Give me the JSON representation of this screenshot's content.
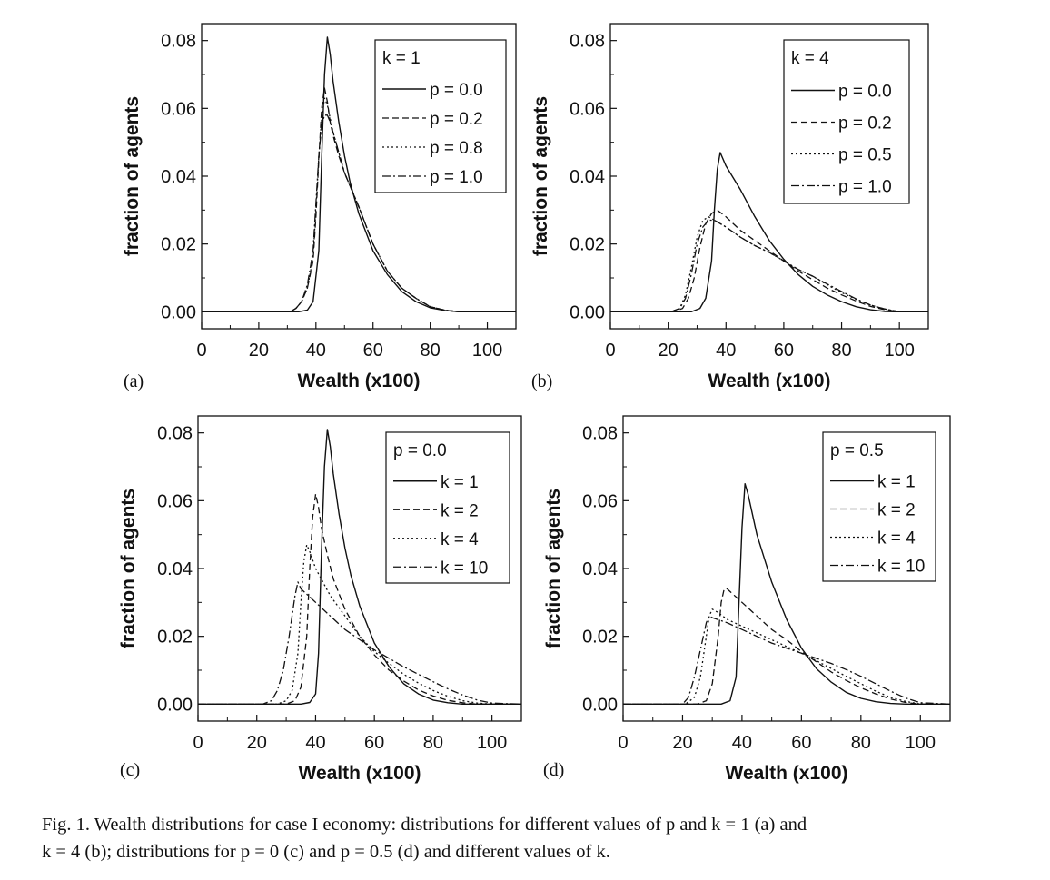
{
  "caption": {
    "line1": "Fig. 1. Wealth distributions for case I economy: distributions for different values of p and k = 1 (a) and",
    "line2": "k = 4 (b); distributions for p = 0 (c) and p = 0.5 (d) and different values of k."
  },
  "chart_data": [
    {
      "panel": "(a)",
      "type": "line",
      "xlabel": "Wealth (x100)",
      "ylabel": "fraction of agents",
      "xlim": [
        0,
        110
      ],
      "ylim": [
        -0.005,
        0.085
      ],
      "xticks": [
        "0",
        "20",
        "40",
        "60",
        "80",
        "100"
      ],
      "yticks": [
        "0.00",
        "0.02",
        "0.04",
        "0.06",
        "0.08"
      ],
      "legend_title": "k = 1",
      "legend_position": "top-right",
      "series": [
        {
          "name": "p = 0.0",
          "dash": "solid",
          "x": [
            0,
            34,
            37,
            39,
            41,
            42,
            43,
            44,
            45,
            46,
            48,
            50,
            52,
            55,
            60,
            65,
            70,
            75,
            80,
            85,
            90,
            110
          ],
          "y": [
            0,
            0,
            0.0005,
            0.003,
            0.018,
            0.045,
            0.07,
            0.081,
            0.076,
            0.068,
            0.056,
            0.046,
            0.038,
            0.029,
            0.018,
            0.011,
            0.006,
            0.003,
            0.0012,
            0.0004,
            0,
            0
          ]
        },
        {
          "name": "p = 0.2",
          "dash": "dashed",
          "x": [
            0,
            31,
            33,
            35,
            37,
            39,
            40,
            41,
            42,
            43,
            44,
            45,
            46,
            48,
            50,
            55,
            60,
            65,
            70,
            75,
            80,
            85,
            90,
            110
          ],
          "y": [
            0,
            0,
            0.001,
            0.003,
            0.007,
            0.015,
            0.028,
            0.045,
            0.06,
            0.066,
            0.062,
            0.056,
            0.052,
            0.046,
            0.041,
            0.031,
            0.02,
            0.012,
            0.007,
            0.004,
            0.0015,
            0.0005,
            0,
            0
          ]
        },
        {
          "name": "p = 0.8",
          "dash": "dotted",
          "x": [
            0,
            31,
            33,
            35,
            37,
            39,
            40,
            41,
            42,
            43,
            44,
            45,
            46,
            48,
            50,
            55,
            60,
            65,
            70,
            75,
            80,
            85,
            90,
            110
          ],
          "y": [
            0,
            0,
            0.001,
            0.003,
            0.007,
            0.016,
            0.03,
            0.046,
            0.057,
            0.063,
            0.061,
            0.057,
            0.053,
            0.047,
            0.041,
            0.031,
            0.02,
            0.012,
            0.007,
            0.004,
            0.0015,
            0.0005,
            0,
            0
          ]
        },
        {
          "name": "p = 1.0",
          "dash": "dashdot",
          "x": [
            0,
            31,
            33,
            35,
            37,
            39,
            40,
            41,
            42,
            43,
            44,
            45,
            46,
            48,
            50,
            55,
            60,
            65,
            70,
            75,
            80,
            85,
            90,
            110
          ],
          "y": [
            0,
            0,
            0.001,
            0.003,
            0.008,
            0.018,
            0.032,
            0.046,
            0.055,
            0.058,
            0.058,
            0.056,
            0.053,
            0.047,
            0.041,
            0.031,
            0.02,
            0.012,
            0.007,
            0.004,
            0.0015,
            0.0005,
            0,
            0
          ]
        }
      ]
    },
    {
      "panel": "(b)",
      "type": "line",
      "xlabel": "Wealth (x100)",
      "ylabel": "fraction of agents",
      "xlim": [
        0,
        110
      ],
      "ylim": [
        -0.005,
        0.085
      ],
      "xticks": [
        "0",
        "20",
        "40",
        "60",
        "80",
        "100"
      ],
      "yticks": [
        "0.00",
        "0.02",
        "0.04",
        "0.06",
        "0.08"
      ],
      "legend_title": "k = 4",
      "legend_position": "top-right",
      "series": [
        {
          "name": "p = 0.0",
          "dash": "solid",
          "x": [
            0,
            28,
            31,
            33,
            35,
            36,
            37,
            38,
            40,
            45,
            50,
            55,
            60,
            65,
            70,
            75,
            80,
            85,
            90,
            95,
            98,
            110
          ],
          "y": [
            0,
            0,
            0.001,
            0.004,
            0.015,
            0.03,
            0.042,
            0.047,
            0.043,
            0.036,
            0.028,
            0.021,
            0.0155,
            0.011,
            0.0075,
            0.005,
            0.003,
            0.0015,
            0.0006,
            0.0001,
            0,
            0
          ]
        },
        {
          "name": "p = 0.2",
          "dash": "dashed",
          "x": [
            0,
            22,
            25,
            27,
            29,
            31,
            33,
            35,
            37,
            40,
            45,
            50,
            55,
            60,
            65,
            70,
            75,
            80,
            85,
            90,
            95,
            100,
            110
          ],
          "y": [
            0,
            0,
            0.001,
            0.004,
            0.01,
            0.019,
            0.026,
            0.029,
            0.03,
            0.028,
            0.024,
            0.021,
            0.018,
            0.015,
            0.012,
            0.0095,
            0.007,
            0.005,
            0.0032,
            0.0016,
            0.0006,
            0,
            0
          ]
        },
        {
          "name": "p = 0.5",
          "dash": "dotted",
          "x": [
            0,
            21,
            24,
            26,
            28,
            30,
            32,
            34,
            36,
            40,
            45,
            50,
            55,
            60,
            65,
            70,
            75,
            80,
            85,
            90,
            95,
            100,
            110
          ],
          "y": [
            0,
            0,
            0.001,
            0.005,
            0.013,
            0.022,
            0.027,
            0.028,
            0.027,
            0.025,
            0.022,
            0.0195,
            0.0175,
            0.015,
            0.0125,
            0.0105,
            0.008,
            0.0057,
            0.0037,
            0.002,
            0.0008,
            0,
            0
          ]
        },
        {
          "name": "p = 1.0",
          "dash": "dashdot",
          "x": [
            0,
            21,
            24,
            26,
            28,
            30,
            32,
            34,
            36,
            40,
            45,
            50,
            55,
            60,
            65,
            70,
            75,
            80,
            85,
            90,
            95,
            100,
            110
          ],
          "y": [
            0,
            0,
            0.001,
            0.004,
            0.011,
            0.02,
            0.025,
            0.027,
            0.027,
            0.025,
            0.022,
            0.0195,
            0.0175,
            0.015,
            0.0125,
            0.0105,
            0.0082,
            0.006,
            0.0038,
            0.002,
            0.0008,
            0,
            0
          ]
        }
      ]
    },
    {
      "panel": "(c)",
      "type": "line",
      "xlabel": "Wealth (x100)",
      "ylabel": "fraction of agents",
      "xlim": [
        0,
        110
      ],
      "ylim": [
        -0.005,
        0.085
      ],
      "xticks": [
        "0",
        "20",
        "40",
        "60",
        "80",
        "100"
      ],
      "yticks": [
        "0.00",
        "0.02",
        "0.04",
        "0.06",
        "0.08"
      ],
      "legend_title": "p = 0.0",
      "legend_position": "top-right",
      "series": [
        {
          "name": "k = 1",
          "dash": "solid",
          "x": [
            0,
            35,
            38,
            40,
            41,
            42,
            43,
            44,
            45,
            46,
            48,
            50,
            52,
            55,
            60,
            65,
            70,
            75,
            80,
            85,
            90,
            110
          ],
          "y": [
            0,
            0,
            0.0005,
            0.003,
            0.015,
            0.045,
            0.07,
            0.081,
            0.076,
            0.068,
            0.056,
            0.046,
            0.038,
            0.029,
            0.018,
            0.011,
            0.006,
            0.003,
            0.0012,
            0.0004,
            0,
            0
          ]
        },
        {
          "name": "k = 2",
          "dash": "dashed",
          "x": [
            0,
            30,
            33,
            35,
            37,
            38,
            39,
            40,
            41,
            42,
            44,
            46,
            50,
            55,
            60,
            65,
            70,
            75,
            80,
            85,
            90,
            95,
            110
          ],
          "y": [
            0,
            0,
            0.001,
            0.005,
            0.02,
            0.04,
            0.055,
            0.062,
            0.058,
            0.052,
            0.044,
            0.037,
            0.028,
            0.02,
            0.0145,
            0.01,
            0.0068,
            0.0042,
            0.0024,
            0.0011,
            0.0004,
            0,
            0
          ]
        },
        {
          "name": "k = 4",
          "dash": "dotted",
          "x": [
            0,
            27,
            30,
            32,
            34,
            35,
            36,
            37,
            38,
            40,
            45,
            50,
            55,
            60,
            65,
            70,
            75,
            80,
            85,
            90,
            95,
            100,
            110
          ],
          "y": [
            0,
            0,
            0.001,
            0.004,
            0.015,
            0.03,
            0.042,
            0.047,
            0.045,
            0.04,
            0.032,
            0.026,
            0.02,
            0.0155,
            0.012,
            0.0088,
            0.0062,
            0.004,
            0.0023,
            0.001,
            0.0003,
            0,
            0
          ]
        },
        {
          "name": "k = 10",
          "dash": "dashdot",
          "x": [
            0,
            22,
            25,
            27,
            29,
            31,
            33,
            34,
            35,
            40,
            45,
            50,
            55,
            60,
            65,
            70,
            75,
            80,
            85,
            90,
            95,
            100,
            110
          ],
          "y": [
            0,
            0,
            0.001,
            0.004,
            0.01,
            0.02,
            0.032,
            0.036,
            0.034,
            0.03,
            0.026,
            0.022,
            0.019,
            0.016,
            0.0135,
            0.011,
            0.0088,
            0.0066,
            0.0045,
            0.0027,
            0.0012,
            0.0003,
            0
          ]
        }
      ]
    },
    {
      "panel": "(d)",
      "type": "line",
      "xlabel": "Wealth (x100)",
      "ylabel": "fraction of agents",
      "xlim": [
        0,
        110
      ],
      "ylim": [
        -0.005,
        0.085
      ],
      "xticks": [
        "0",
        "20",
        "40",
        "60",
        "80",
        "100"
      ],
      "yticks": [
        "0.00",
        "0.02",
        "0.04",
        "0.06",
        "0.08"
      ],
      "legend_title": "p = 0.5",
      "legend_position": "top-right",
      "series": [
        {
          "name": "k = 1",
          "dash": "solid",
          "x": [
            0,
            33,
            36,
            38,
            39,
            40,
            41,
            42,
            45,
            50,
            55,
            60,
            65,
            70,
            75,
            80,
            85,
            90,
            95,
            110
          ],
          "y": [
            0,
            0,
            0.001,
            0.008,
            0.03,
            0.052,
            0.065,
            0.062,
            0.05,
            0.036,
            0.025,
            0.0165,
            0.0105,
            0.0065,
            0.0035,
            0.0017,
            0.0007,
            0.0002,
            0,
            0
          ]
        },
        {
          "name": "k = 2",
          "dash": "dashed",
          "x": [
            0,
            25,
            28,
            30,
            32,
            33,
            34,
            35,
            40,
            45,
            50,
            55,
            60,
            65,
            70,
            75,
            80,
            85,
            90,
            95,
            100,
            110
          ],
          "y": [
            0,
            0,
            0.001,
            0.006,
            0.02,
            0.03,
            0.034,
            0.034,
            0.03,
            0.026,
            0.022,
            0.019,
            0.0155,
            0.0125,
            0.0095,
            0.007,
            0.0048,
            0.003,
            0.0015,
            0.0005,
            0,
            0
          ]
        },
        {
          "name": "k = 4",
          "dash": "dotted",
          "x": [
            0,
            21,
            24,
            26,
            28,
            29,
            30,
            32,
            35,
            40,
            45,
            50,
            55,
            60,
            65,
            70,
            75,
            80,
            85,
            90,
            95,
            100,
            110
          ],
          "y": [
            0,
            0,
            0.002,
            0.008,
            0.02,
            0.026,
            0.028,
            0.027,
            0.025,
            0.023,
            0.021,
            0.019,
            0.017,
            0.015,
            0.0128,
            0.0105,
            0.0082,
            0.006,
            0.0038,
            0.002,
            0.0008,
            0,
            0
          ]
        },
        {
          "name": "k = 10",
          "dash": "dashdot",
          "x": [
            0,
            20,
            22,
            24,
            26,
            28,
            29,
            30,
            35,
            40,
            45,
            50,
            55,
            60,
            65,
            70,
            75,
            80,
            85,
            90,
            95,
            100,
            110
          ],
          "y": [
            0,
            0,
            0.002,
            0.008,
            0.016,
            0.024,
            0.026,
            0.0255,
            0.024,
            0.022,
            0.02,
            0.018,
            0.0165,
            0.015,
            0.0135,
            0.012,
            0.0102,
            0.0082,
            0.006,
            0.0038,
            0.0018,
            0.0004,
            0
          ]
        }
      ]
    }
  ]
}
